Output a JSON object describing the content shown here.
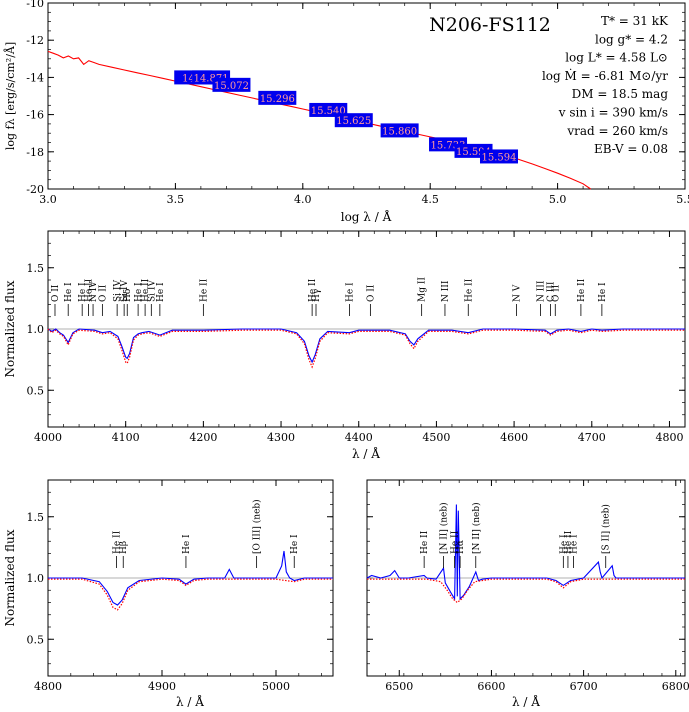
{
  "chart_data": [
    {
      "type": "line",
      "ylabel": "log fλ [erg/s/cm²/Å]",
      "xlabel": "log λ / Å",
      "xlim": [
        3.0,
        5.5
      ],
      "ylim": [
        -20,
        -10
      ],
      "xticks": [
        "3.0",
        "3.5",
        "4.0",
        "4.5",
        "5.0",
        "5.5"
      ],
      "yticks": [
        "-10",
        "-12",
        "-14",
        "-16",
        "-18",
        "-20"
      ],
      "grid": false,
      "annotations": {
        "object": "N206-FS112",
        "params": [
          "T* = 31 kK",
          "log g* = 4.2",
          "log L* = 4.58 L⊙",
          "log Ṁ = -6.81 M⊙/yr",
          "DM = 18.5 mag",
          "v sin i = 390 km/s",
          "vrad = 260 km/s",
          "EB-V = 0.08"
        ]
      },
      "photometry": [
        {
          "x": 3.57,
          "y": -14.0,
          "label": "14.8"
        },
        {
          "x": 3.64,
          "y": -14.0,
          "label": "14.871"
        },
        {
          "x": 3.72,
          "y": -14.4,
          "label": "15.072"
        },
        {
          "x": 3.9,
          "y": -15.1,
          "label": "15.296"
        },
        {
          "x": 4.1,
          "y": -15.75,
          "label": "15.540"
        },
        {
          "x": 4.2,
          "y": -16.3,
          "label": "15.625"
        },
        {
          "x": 4.38,
          "y": -16.85,
          "label": "15.860"
        },
        {
          "x": 4.57,
          "y": -17.6,
          "label": "15.733"
        },
        {
          "x": 4.67,
          "y": -17.95,
          "label": "15.594"
        },
        {
          "x": 4.77,
          "y": -18.25,
          "label": "15.594"
        }
      ],
      "series": [
        {
          "color": "#ff0000",
          "x": [
            3.0,
            3.02,
            3.04,
            3.06,
            3.08,
            3.1,
            3.12,
            3.14,
            3.16,
            3.18,
            3.2,
            3.25,
            3.3,
            3.35,
            3.4,
            3.45,
            3.5,
            3.55,
            3.6,
            3.65,
            3.7,
            3.75,
            3.8,
            3.85,
            3.9,
            3.95,
            4.0,
            4.05,
            4.1,
            4.15,
            4.2,
            4.25,
            4.3,
            4.35,
            4.4,
            4.45,
            4.5,
            4.55,
            4.6,
            4.65,
            4.7,
            4.75,
            4.8,
            4.85,
            4.9,
            4.95,
            5.0,
            5.05,
            5.1,
            5.13
          ],
          "y": [
            -12.6,
            -12.7,
            -12.8,
            -12.95,
            -12.85,
            -13.0,
            -12.95,
            -13.3,
            -13.1,
            -13.2,
            -13.3,
            -13.45,
            -13.6,
            -13.75,
            -13.9,
            -14.05,
            -14.2,
            -14.35,
            -14.5,
            -14.65,
            -14.8,
            -14.95,
            -15.1,
            -15.25,
            -15.4,
            -15.55,
            -15.7,
            -15.85,
            -16.0,
            -16.15,
            -16.3,
            -16.45,
            -16.6,
            -16.75,
            -16.9,
            -17.05,
            -17.2,
            -17.35,
            -17.5,
            -17.65,
            -17.82,
            -18.0,
            -18.2,
            -18.42,
            -18.65,
            -18.9,
            -19.15,
            -19.42,
            -19.72,
            -20.0
          ]
        }
      ]
    },
    {
      "type": "line",
      "ylabel": "Normalized flux",
      "xlabel": "λ / Å",
      "xlim": [
        4000,
        4820
      ],
      "ylim": [
        0.2,
        1.8
      ],
      "xticks": [
        "4000",
        "4100",
        "4200",
        "4300",
        "4400",
        "4500",
        "4600",
        "4700",
        "4800"
      ],
      "yticks": [
        "0.5",
        "1.0",
        "1.5"
      ],
      "reference_line": 1.0,
      "lines": [
        {
          "x": 4026,
          "label": "He I"
        },
        {
          "x": 4009,
          "label": "He I"
        },
        {
          "x": 4044,
          "label": "He I"
        },
        {
          "x": 4070,
          "label": "O II"
        },
        {
          "x": 4089,
          "label": "Si IV"
        },
        {
          "x": 4102,
          "label": "Hδ"
        },
        {
          "x": 4116,
          "label": "Si IV"
        },
        {
          "x": 4121,
          "label": "He I"
        },
        {
          "x": 4144,
          "label": "He I"
        },
        {
          "x": 4200,
          "label": "He II"
        },
        {
          "x": 4340,
          "label": "Hγ"
        },
        {
          "x": 4388,
          "label": "He I"
        },
        {
          "x": 4415,
          "label": "O II"
        },
        {
          "x": 4471,
          "label": "He I"
        },
        {
          "x": 4481,
          "label": "Mg II"
        },
        {
          "x": 4511,
          "label": "N III"
        },
        {
          "x": 4541,
          "label": "He II"
        },
        {
          "x": 4603,
          "label": "N V"
        },
        {
          "x": 4634,
          "label": "N III"
        },
        {
          "x": 4647,
          "label": "C III"
        },
        {
          "x": 4686,
          "label": "He II"
        },
        {
          "x": 4713,
          "label": "He I"
        }
      ],
      "line_labels": [
        "O II",
        "He I",
        "He I",
        "He II",
        "N IV",
        "O II",
        "Si IV",
        "Si IV",
        "He I",
        "Hδ",
        "He II",
        "Si IV",
        "He I",
        "He II",
        "He II",
        "Hγ",
        "He I",
        "O II",
        "Mg II",
        "N III",
        "He II",
        "N V",
        "N III",
        "C III",
        "O II",
        "He II",
        "He I"
      ],
      "series": [
        {
          "color": "#0000ff",
          "style": "solid",
          "x": [
            4000,
            4005,
            4010,
            4015,
            4020,
            4026,
            4032,
            4040,
            4060,
            4070,
            4080,
            4090,
            4095,
            4100,
            4102,
            4105,
            4110,
            4116,
            4121,
            4130,
            4144,
            4160,
            4200,
            4250,
            4300,
            4320,
            4330,
            4336,
            4340,
            4344,
            4350,
            4360,
            4388,
            4400,
            4440,
            4460,
            4466,
            4471,
            4476,
            4490,
            4520,
            4541,
            4560,
            4600,
            4640,
            4647,
            4655,
            4670,
            4686,
            4700,
            4713,
            4740,
            4780,
            4820
          ],
          "y": [
            1.0,
            0.98,
            1.0,
            0.97,
            0.95,
            0.89,
            0.97,
            1.0,
            0.99,
            0.97,
            0.98,
            0.94,
            0.86,
            0.77,
            0.76,
            0.8,
            0.93,
            0.96,
            0.97,
            0.98,
            0.95,
            0.99,
            0.99,
            1.0,
            1.0,
            0.97,
            0.9,
            0.78,
            0.73,
            0.79,
            0.92,
            0.98,
            0.97,
            0.99,
            0.99,
            0.96,
            0.9,
            0.87,
            0.92,
            0.99,
            0.99,
            0.97,
            1.0,
            1.0,
            0.99,
            0.96,
            0.99,
            1.0,
            0.98,
            1.0,
            0.99,
            1.0,
            1.0,
            1.0
          ]
        },
        {
          "color": "#ff0000",
          "style": "dotted",
          "x": [
            4000,
            4005,
            4010,
            4015,
            4020,
            4026,
            4032,
            4040,
            4060,
            4070,
            4080,
            4090,
            4095,
            4100,
            4102,
            4105,
            4110,
            4116,
            4121,
            4130,
            4144,
            4160,
            4200,
            4250,
            4300,
            4320,
            4330,
            4336,
            4340,
            4344,
            4350,
            4360,
            4388,
            4400,
            4440,
            4460,
            4466,
            4471,
            4476,
            4490,
            4520,
            4541,
            4560,
            4600,
            4640,
            4647,
            4655,
            4670,
            4686,
            4700,
            4713,
            4740,
            4780,
            4820
          ],
          "y": [
            1.0,
            0.97,
            0.99,
            0.96,
            0.94,
            0.87,
            0.96,
            0.99,
            0.98,
            0.96,
            0.97,
            0.92,
            0.83,
            0.73,
            0.72,
            0.77,
            0.91,
            0.95,
            0.96,
            0.97,
            0.94,
            0.98,
            0.98,
            0.99,
            0.99,
            0.96,
            0.88,
            0.75,
            0.69,
            0.76,
            0.9,
            0.97,
            0.96,
            0.98,
            0.98,
            0.95,
            0.88,
            0.84,
            0.9,
            0.98,
            0.98,
            0.96,
            0.99,
            0.99,
            0.98,
            0.95,
            0.98,
            0.99,
            0.97,
            0.99,
            0.98,
            0.99,
            0.99,
            0.99
          ]
        }
      ]
    },
    {
      "type": "line",
      "ylabel": "Normalized flux",
      "xlabel": "λ / Å",
      "xlim": [
        4800,
        5050
      ],
      "ylim": [
        0.2,
        1.8
      ],
      "xticks": [
        "4800",
        "4900",
        "5000"
      ],
      "yticks": [
        "0.5",
        "1.0",
        "1.5"
      ],
      "reference_line": 1.0,
      "line_labels": [
        "He II",
        "Hβ",
        "He I",
        "[O III] (neb)",
        "He I"
      ],
      "series": [
        {
          "color": "#0000ff",
          "style": "solid",
          "x": [
            4800,
            4830,
            4845,
            4852,
            4857,
            4861,
            4865,
            4870,
            4880,
            4900,
            4915,
            4921,
            4928,
            4940,
            4955,
            4959,
            4963,
            4980,
            5000,
            5005,
            5007,
            5009,
            5012,
            5016,
            5025,
            5050
          ],
          "y": [
            1.0,
            1.0,
            0.97,
            0.89,
            0.8,
            0.78,
            0.82,
            0.92,
            0.98,
            1.0,
            0.99,
            0.95,
            0.99,
            1.0,
            1.0,
            1.07,
            1.0,
            1.0,
            1.0,
            1.1,
            1.22,
            1.05,
            1.0,
            0.98,
            1.0,
            1.0
          ]
        },
        {
          "color": "#ff0000",
          "style": "dotted",
          "x": [
            4800,
            4830,
            4845,
            4852,
            4857,
            4861,
            4865,
            4870,
            4880,
            4900,
            4915,
            4921,
            4928,
            4940,
            4960,
            4980,
            5000,
            5016,
            5025,
            5050
          ],
          "y": [
            0.99,
            0.99,
            0.95,
            0.86,
            0.76,
            0.74,
            0.79,
            0.9,
            0.97,
            0.99,
            0.98,
            0.94,
            0.98,
            0.99,
            0.99,
            0.99,
            0.99,
            0.97,
            0.99,
            0.99
          ]
        }
      ]
    },
    {
      "type": "line",
      "xlabel": "λ / Å",
      "xlim": [
        6465,
        6810
      ],
      "ylim": [
        0.2,
        1.8
      ],
      "xticks": [
        "6500",
        "6600",
        "6700",
        "6800"
      ],
      "yticks": [
        "0.5",
        "1.0",
        "1.5"
      ],
      "reference_line": 1.0,
      "line_labels": [
        "He II",
        "[N II] (neb)",
        "He II",
        "Hα",
        "[N II] (neb)",
        "He I",
        "He II",
        "He I",
        "[S II] (neb)"
      ],
      "series": [
        {
          "color": "#0000ff",
          "style": "solid",
          "x": [
            6465,
            6470,
            6480,
            6490,
            6495,
            6500,
            6510,
            6527,
            6530,
            6540,
            6548,
            6550,
            6556,
            6560,
            6562,
            6563,
            6564,
            6566,
            6570,
            6576,
            6583,
            6586,
            6590,
            6600,
            6620,
            6660,
            6670,
            6678,
            6686,
            6700,
            6716,
            6718,
            6720,
            6731,
            6733,
            6735,
            6760,
            6810
          ],
          "y": [
            1.0,
            1.02,
            1.0,
            1.02,
            1.06,
            1.0,
            1.0,
            1.02,
            1.0,
            0.99,
            1.08,
            0.96,
            0.88,
            0.83,
            1.6,
            0.85,
            1.55,
            0.83,
            0.86,
            0.93,
            1.05,
            0.98,
            0.99,
            1.0,
            1.0,
            1.0,
            0.98,
            0.94,
            0.98,
            1.0,
            1.13,
            1.05,
            1.0,
            1.1,
            1.02,
            1.0,
            1.0,
            1.0
          ]
        },
        {
          "color": "#ff0000",
          "style": "dotted",
          "x": [
            6465,
            6500,
            6530,
            6545,
            6552,
            6558,
            6563,
            6568,
            6574,
            6582,
            6600,
            6660,
            6670,
            6678,
            6686,
            6700,
            6760,
            6810
          ],
          "y": [
            0.99,
            0.99,
            0.99,
            0.97,
            0.9,
            0.83,
            0.8,
            0.83,
            0.9,
            0.97,
            0.99,
            0.99,
            0.97,
            0.92,
            0.97,
            0.99,
            0.99,
            0.99
          ]
        }
      ]
    }
  ]
}
